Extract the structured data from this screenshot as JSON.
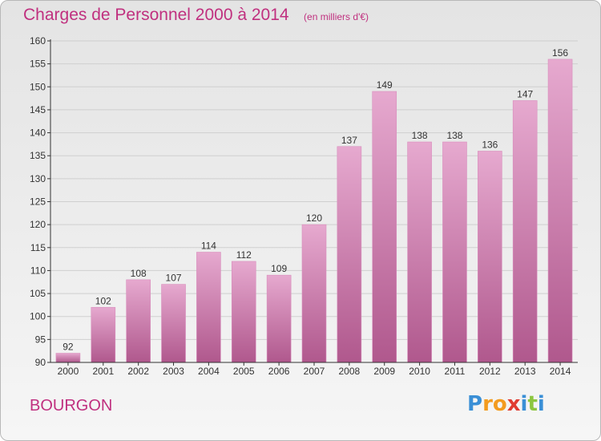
{
  "title": "Charges de Personnel 2000 à 2014",
  "unit_note": "(en milliers d'€)",
  "commune": "BOURGON",
  "logo": {
    "text": "Proxiti",
    "letters": [
      {
        "char": "P",
        "color": "#3a8fd6"
      },
      {
        "char": "r",
        "color": "#f39b1f"
      },
      {
        "char": "o",
        "color": "#f39b1f"
      },
      {
        "char": "x",
        "color": "#e03c31"
      },
      {
        "char": "i",
        "color": "#3a8fd6"
      },
      {
        "char": "t",
        "color": "#8cc63f"
      },
      {
        "char": "i",
        "color": "#3a8fd6"
      }
    ]
  },
  "colors": {
    "title": "#c0307f",
    "bar_top": "#e6a9cf",
    "bar_bottom": "#b0588d",
    "axis": "#333333",
    "grid": "#cfcfcf"
  },
  "chart_data": {
    "type": "bar",
    "title": "Charges de Personnel 2000 à 2014",
    "subtitle": "(en milliers d'€)",
    "xlabel": "",
    "ylabel": "",
    "categories": [
      "2000",
      "2001",
      "2002",
      "2003",
      "2004",
      "2005",
      "2006",
      "2007",
      "2008",
      "2009",
      "2010",
      "2011",
      "2012",
      "2013",
      "2014"
    ],
    "values": [
      92,
      102,
      108,
      107,
      114,
      112,
      109,
      120,
      137,
      149,
      138,
      138,
      136,
      147,
      156
    ],
    "ylim": [
      90,
      160
    ],
    "yticks": [
      90,
      95,
      100,
      105,
      110,
      115,
      120,
      125,
      130,
      135,
      140,
      145,
      150,
      155,
      160
    ],
    "grid": true,
    "data_labels": true
  }
}
